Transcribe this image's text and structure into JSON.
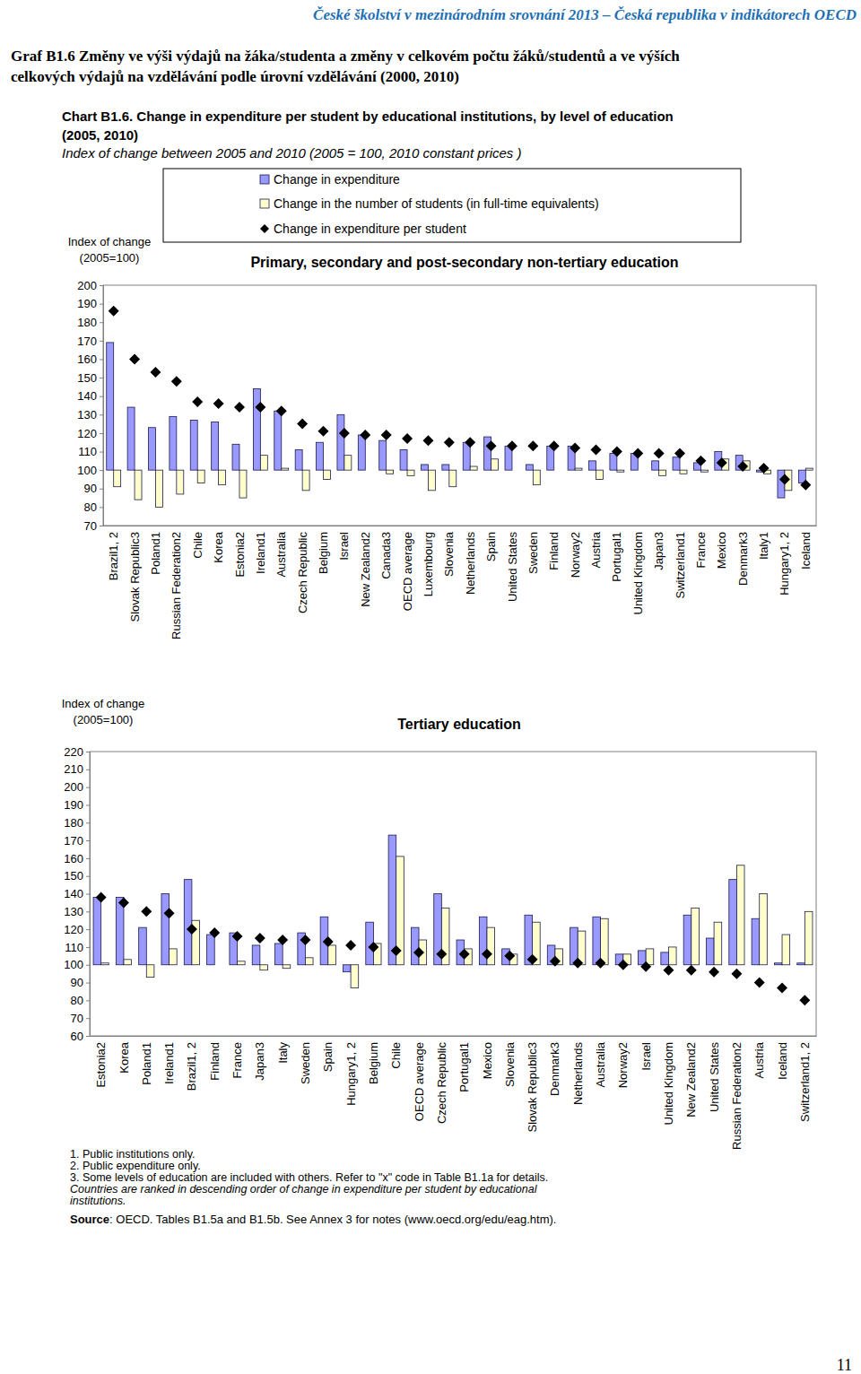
{
  "header": "České školství v mezinárodním srovnání 2013 – Česká republika v indikátorech OECD",
  "czech_title": [
    "Graf B1.6 Změny ve výši výdajů na žáka/studenta a změny v celkovém počtu žáků/studentů a ve výších",
    "celkových výdajů na vzdělávání podle úrovní vzdělávání (2000, 2010)"
  ],
  "chart_title": [
    "Chart B1.6. Change in expenditure per student by educational institutions, by level of education",
    "(2005, 2010)"
  ],
  "chart_subtitle": "Index of change between 2005 and 2010 (2005 = 100, 2010 constant prices )",
  "notes": [
    "1. Public institutions only.",
    "2. Public expenditure only.",
    "3. Some levels of education are included with others. Refer to \"x\" code in Table B1.1a for details."
  ],
  "ranking_note": [
    "Countries are ranked in descending order of change in expenditure per student by educational",
    "institutions."
  ],
  "source": [
    "Source",
    ": OECD. Tables B1.5a and B1.5b. See Annex 3 for notes (www.oecd.org/edu/eag.htm)."
  ],
  "page_number": "11",
  "chart_data": [
    {
      "type": "bar",
      "title": "Primary, secondary and post-secondary  non-tertiary education",
      "ylabel": [
        "Index of change",
        "(2005=100)"
      ],
      "legend": "top",
      "baseline": 100,
      "ylim": [
        70,
        200
      ],
      "yticks": [
        70,
        80,
        90,
        100,
        110,
        120,
        130,
        140,
        150,
        160,
        170,
        180,
        190,
        200
      ],
      "categories": [
        "Brazil1, 2",
        "Slovak Republic3",
        "Poland1",
        "Russian Federation2",
        "Chile",
        "Korea",
        "Estonia2",
        "Ireland1",
        "Australia",
        "Czech Republic",
        "Belgium",
        "Israel",
        "New Zealand2",
        "Canada3",
        "OECD average",
        "Luxembourg",
        "Slovenia",
        "Netherlands",
        "Spain",
        "United States",
        "Sweden",
        "Finland",
        "Norway2",
        "Austria",
        "Portugal1",
        "United Kingdom",
        "Japan3",
        "Switzerland1",
        "France",
        "Mexico",
        "Denmark3",
        "Italy1",
        "Hungary1, 2",
        "Iceland"
      ],
      "series": [
        {
          "name": "Change in expenditure",
          "type": "bar",
          "color": "#9999ff",
          "values": [
            169,
            134,
            123,
            129,
            127,
            126,
            114,
            144,
            132,
            111,
            115,
            130,
            119,
            116,
            111,
            103,
            103,
            115,
            118,
            113,
            103,
            113,
            113,
            105,
            109,
            109,
            105,
            107,
            104,
            110,
            108,
            99,
            85,
            93
          ]
        },
        {
          "name": "Change in the number of students (in full-time equivalents)",
          "type": "bar",
          "color": "#ffffcc",
          "values": [
            91,
            84,
            80,
            87,
            93,
            92,
            85,
            108,
            101,
            89,
            95,
            108,
            100,
            98,
            97,
            89,
            91,
            102,
            106,
            100,
            92,
            100,
            101,
            95,
            99,
            100,
            97,
            98,
            99,
            106,
            105,
            98,
            89,
            101
          ]
        },
        {
          "name": "Change in expenditure per student",
          "type": "scatter",
          "marker": "diamond",
          "color": "#000000",
          "values": [
            186,
            160,
            153,
            148,
            137,
            136,
            134,
            134,
            132,
            125,
            121,
            120,
            119,
            119,
            117,
            116,
            115,
            115,
            113,
            113,
            113,
            113,
            112,
            111,
            110,
            109,
            109,
            109,
            105,
            104,
            102,
            101,
            95,
            92
          ]
        }
      ]
    },
    {
      "type": "bar",
      "title": "Tertiary education",
      "ylabel": [
        "Index of change",
        "(2005=100)"
      ],
      "baseline": 100,
      "ylim": [
        60,
        220
      ],
      "yticks": [
        60,
        70,
        80,
        90,
        100,
        110,
        120,
        130,
        140,
        150,
        160,
        170,
        180,
        190,
        200,
        210,
        220
      ],
      "categories": [
        "Estonia2",
        "Korea",
        "Poland1",
        "Ireland1",
        "Brazil1, 2",
        "Finland",
        "France",
        "Japan3",
        "Italy",
        "Sweden",
        "Spain",
        "Hungary1, 2",
        "Belgium",
        "Chile",
        "OECD average",
        "Czech Republic",
        "Portugal1",
        "Mexico",
        "Slovenia",
        "Slovak Republic3",
        "Denmark3",
        "Netherlands",
        "Australia",
        "Norway2",
        "Israel",
        "United Kingdom",
        "New Zealand2",
        "United States",
        "Russian Federation2",
        "Austria",
        "Iceland",
        "Switzerland1, 2"
      ],
      "series": [
        {
          "type": "bar",
          "color": "#9999ff",
          "values": [
            138,
            138,
            121,
            140,
            148,
            117,
            118,
            111,
            112,
            118,
            127,
            96,
            124,
            173,
            121,
            140,
            114,
            127,
            109,
            128,
            111,
            121,
            127,
            106,
            108,
            107,
            128,
            115,
            148,
            126,
            101,
            101
          ]
        },
        {
          "type": "bar",
          "color": "#ffffcc",
          "values": [
            101,
            103,
            93,
            109,
            125,
            100,
            102,
            97,
            98,
            104,
            111,
            87,
            112,
            161,
            114,
            132,
            109,
            121,
            106,
            124,
            109,
            119,
            126,
            106,
            109,
            110,
            132,
            124,
            156,
            140,
            117,
            130
          ]
        },
        {
          "type": "scatter",
          "marker": "diamond",
          "color": "#000000",
          "values": [
            138,
            135,
            130,
            129,
            120,
            118,
            116,
            115,
            114,
            114,
            113,
            111,
            110,
            108,
            107,
            106,
            106,
            106,
            105,
            103,
            102,
            101,
            101,
            100,
            99,
            97,
            97,
            96,
            95,
            90,
            87,
            80
          ]
        }
      ]
    }
  ]
}
